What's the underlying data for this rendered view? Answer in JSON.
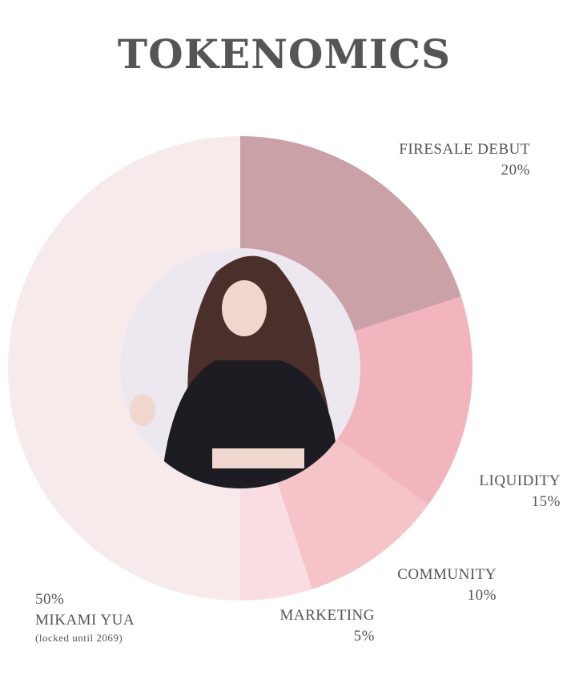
{
  "chart_data": {
    "type": "pie",
    "variant": "donut",
    "title": "TOKENOMICS",
    "slices": [
      {
        "label": "FIRESALE DEBUT",
        "value": 20,
        "value_label": "20%",
        "color": "#c9a1a7"
      },
      {
        "label": "LIQUIDITY",
        "value": 15,
        "value_label": "15%",
        "color": "#f2b5bd"
      },
      {
        "label": "COMMUNITY",
        "value": 10,
        "value_label": "10%",
        "color": "#f5c4c9"
      },
      {
        "label": "MARKETING",
        "value": 5,
        "value_label": "5%",
        "color": "#f9dde2"
      },
      {
        "label": "MIKAMI YUA",
        "value": 50,
        "value_label": "50%",
        "note": "(locked until 2069)",
        "color": "#f6eaea"
      }
    ],
    "start": "top",
    "direction": "clockwise",
    "center_image": "portrait-photo"
  }
}
